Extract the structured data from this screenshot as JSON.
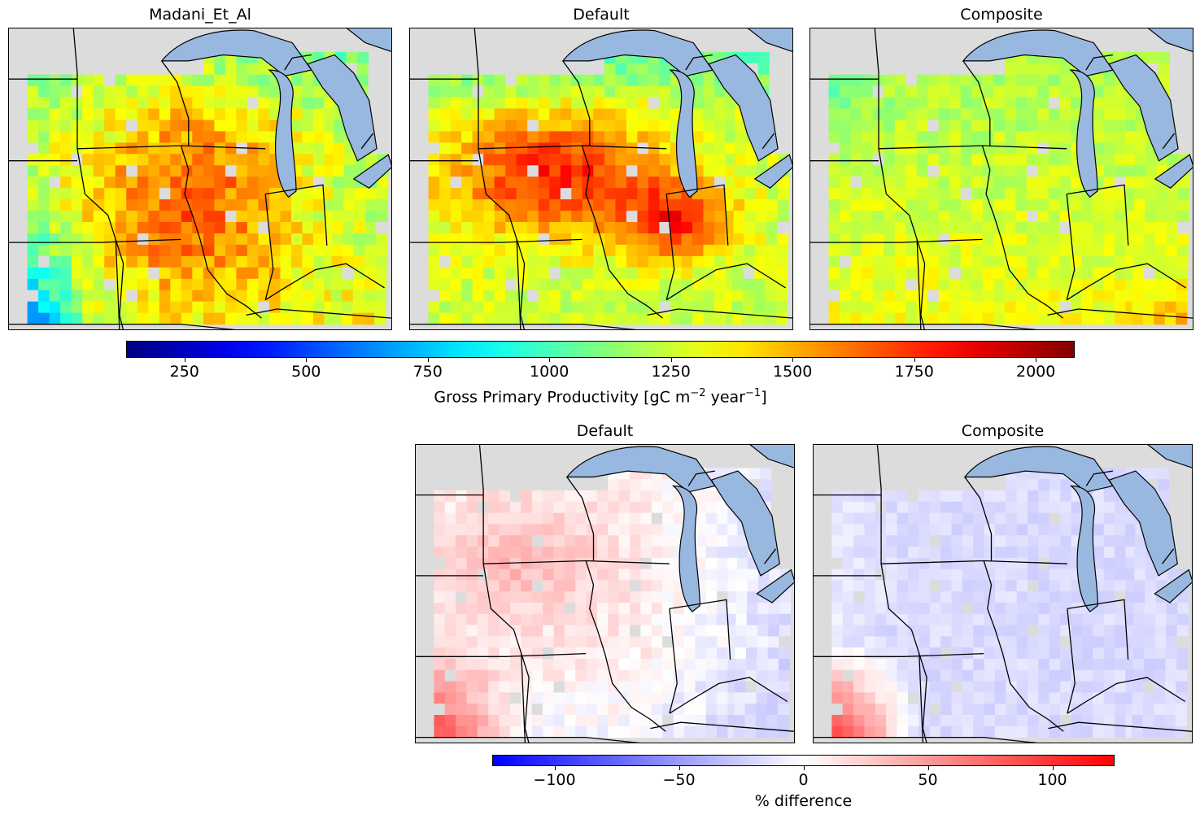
{
  "top_row": {
    "panels": [
      {
        "title": "Madani_Et_Al"
      },
      {
        "title": "Default"
      },
      {
        "title": "Composite"
      }
    ],
    "colorbar": {
      "colormap": "jet",
      "range": [
        130,
        2080
      ],
      "ticks": [
        "250",
        "500",
        "750",
        "1000",
        "1250",
        "1500",
        "1750",
        "2000"
      ],
      "tick_values": [
        250,
        500,
        750,
        1000,
        1250,
        1500,
        1750,
        2000
      ],
      "label_main": "Gross Primary Productivity [gC m",
      "label_exp1": "−2",
      "label_mid": " year",
      "label_exp2": "−1",
      "label_end": "]"
    }
  },
  "bottom_row": {
    "panels": [
      {
        "title": "Default"
      },
      {
        "title": "Composite"
      }
    ],
    "colorbar": {
      "colormap": "bwr",
      "range": [
        -125,
        125
      ],
      "ticks": [
        "−100",
        "−50",
        "0",
        "50",
        "100"
      ],
      "tick_values": [
        -100,
        -50,
        0,
        50,
        100
      ],
      "label": "% difference"
    }
  },
  "map_colors": {
    "land": "#dcdcdc",
    "water": "#99b8e0",
    "border": "#000000",
    "missing": "#dcdcdc"
  }
}
